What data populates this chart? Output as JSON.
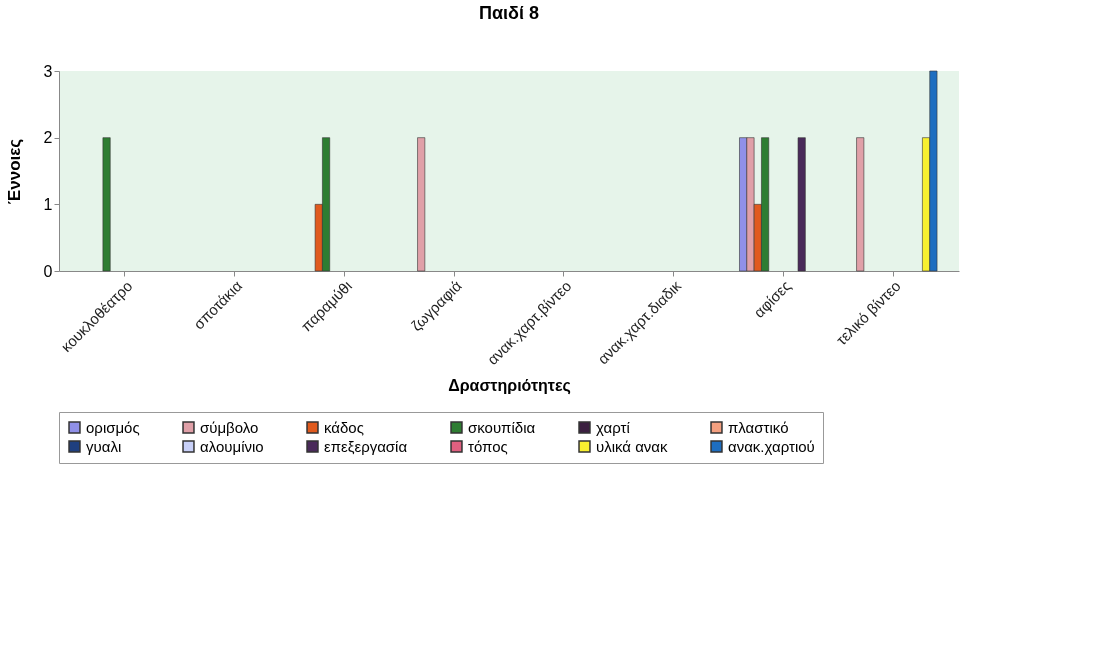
{
  "chart_data": {
    "type": "bar",
    "title": "Παιδί 8",
    "xlabel": "Δραστηριότητες",
    "ylabel": "Έννοιες",
    "categories": [
      "κουκλοθέατρο",
      "σποτάκια",
      "παραμύθι",
      "ζωγραφιά",
      "ανακ.χαρτ.βίντεο",
      "ανακ.χαρτ.διαδικ",
      "αφίσες",
      "τελικό βίντεο"
    ],
    "series": [
      {
        "name": "ορισμός",
        "color": "#9090e8",
        "values": [
          0,
          0,
          0,
          0,
          0,
          0,
          2,
          0
        ]
      },
      {
        "name": "σύμβολο",
        "color": "#e0a0a8",
        "values": [
          0,
          0,
          0,
          2,
          0,
          0,
          2,
          2
        ]
      },
      {
        "name": "κάδος",
        "color": "#e05a1e",
        "values": [
          0,
          0,
          1,
          0,
          0,
          0,
          1,
          0
        ]
      },
      {
        "name": "σκουπίδια",
        "color": "#2e7d32",
        "values": [
          2,
          0,
          2,
          0,
          0,
          0,
          2,
          0
        ]
      },
      {
        "name": "χαρτί",
        "color": "#3b2040",
        "values": [
          0,
          0,
          0,
          0,
          0,
          0,
          0,
          0
        ]
      },
      {
        "name": "πλαστικό",
        "color": "#f4a080",
        "values": [
          0,
          0,
          0,
          0,
          0,
          0,
          0,
          0
        ]
      },
      {
        "name": "γυαλι",
        "color": "#1f3f7f",
        "values": [
          0,
          0,
          0,
          0,
          0,
          0,
          0,
          0
        ]
      },
      {
        "name": "αλουμίνιο",
        "color": "#c8d0f8",
        "values": [
          0,
          0,
          0,
          0,
          0,
          0,
          0,
          0
        ]
      },
      {
        "name": "επεξεργασία",
        "color": "#4a2a5a",
        "values": [
          0,
          0,
          0,
          0,
          0,
          0,
          2,
          0
        ]
      },
      {
        "name": "τόπος",
        "color": "#e06080",
        "values": [
          0,
          0,
          0,
          0,
          0,
          0,
          0,
          0
        ]
      },
      {
        "name": "υλικά ανακ",
        "color": "#f8f030",
        "values": [
          0,
          0,
          0,
          0,
          0,
          0,
          0,
          2
        ]
      },
      {
        "name": "ανακ.χαρτιού",
        "color": "#1e6ec0",
        "values": [
          0,
          0,
          0,
          0,
          0,
          0,
          0,
          3
        ]
      }
    ],
    "ylim": [
      0,
      3
    ],
    "yticks": [
      0,
      1,
      2,
      3
    ],
    "grid": false,
    "legend": "bottom"
  }
}
